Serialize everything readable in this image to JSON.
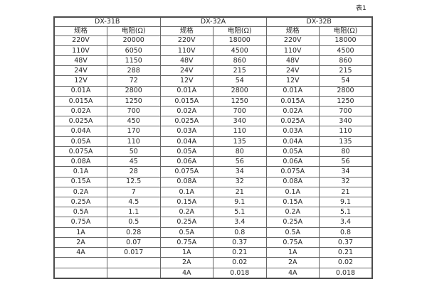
{
  "page": {
    "caption": "表1"
  },
  "table": {
    "groups": [
      {
        "name": "DX-31B",
        "spec_header": "规格",
        "resistance_header": "电阻(Ω)"
      },
      {
        "name": "DX-32A",
        "spec_header": "规格",
        "resistance_header": "电阻(Ω)"
      },
      {
        "name": "DX-32B",
        "spec_header": "规格",
        "resistance_header": "电阻(Ω)"
      }
    ],
    "rows": [
      [
        "220V",
        "20000",
        "220V",
        "18000",
        "220V",
        "18000"
      ],
      [
        "110V",
        "6050",
        "110V",
        "4500",
        "110V",
        "4500"
      ],
      [
        "48V",
        "1150",
        "48V",
        "860",
        "48V",
        "860"
      ],
      [
        "24V",
        "288",
        "24V",
        "215",
        "24V",
        "215"
      ],
      [
        "12V",
        "72",
        "12V",
        "54",
        "12V",
        "54"
      ],
      [
        "0.01A",
        "2800",
        "0.01A",
        "2800",
        "0.01A",
        "2800"
      ],
      [
        "0.015A",
        "1250",
        "0.015A",
        "1250",
        "0.015A",
        "1250"
      ],
      [
        "0.02A",
        "700",
        "0.02A",
        "700",
        "0.02A",
        "700"
      ],
      [
        "0.025A",
        "450",
        "0.025A",
        "340",
        "0.025A",
        "340"
      ],
      [
        "0.04A",
        "170",
        "0.03A",
        "110",
        "0.03A",
        "110"
      ],
      [
        "0.05A",
        "110",
        "0.04A",
        "135",
        "0.04A",
        "135"
      ],
      [
        "0.075A",
        "50",
        "0.05A",
        "80",
        "0.05A",
        "80"
      ],
      [
        "0.08A",
        "45",
        "0.06A",
        "56",
        "0.06A",
        "56"
      ],
      [
        "0.1A",
        "28",
        "0.075A",
        "34",
        "0.075A",
        "34"
      ],
      [
        "0.15A",
        "12.5",
        "0.08A",
        "32",
        "0.08A",
        "32"
      ],
      [
        "0.2A",
        "7",
        "0.1A",
        "21",
        "0.1A",
        "21"
      ],
      [
        "0.25A",
        "4.5",
        "0.15A",
        "9.1",
        "0.15A",
        "9.1"
      ],
      [
        "0.5A",
        "1.1",
        "0.2A",
        "5.1",
        "0.2A",
        "5.1"
      ],
      [
        "0.75A",
        "0.5",
        "0.25A",
        "3.4",
        "0.25A",
        "3.4"
      ],
      [
        "1A",
        "0.28",
        "0.5A",
        "0.8",
        "0.5A",
        "0.8"
      ],
      [
        "2A",
        "0.07",
        "0.75A",
        "0.37",
        "0.75A",
        "0.37"
      ],
      [
        "4A",
        "0.017",
        "1A",
        "0.21",
        "1A",
        "0.21"
      ],
      [
        "",
        "",
        "2A",
        "0.02",
        "2A",
        "0.02"
      ],
      [
        "",
        "",
        "4A",
        "0.018",
        "4A",
        "0.018"
      ]
    ]
  }
}
